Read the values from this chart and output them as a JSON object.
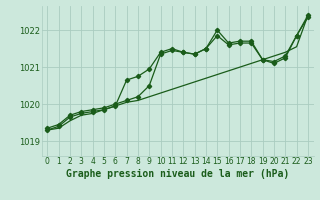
{
  "title": "Graphe pression niveau de la mer (hPa)",
  "background_color": "#cce8dc",
  "grid_color": "#aaccc0",
  "line_color": "#1a5c1a",
  "xlim": [
    -0.5,
    23.5
  ],
  "ylim": [
    1018.6,
    1022.65
  ],
  "yticks": [
    1019,
    1020,
    1021,
    1022
  ],
  "xticks": [
    0,
    1,
    2,
    3,
    4,
    5,
    6,
    7,
    8,
    9,
    10,
    11,
    12,
    13,
    14,
    15,
    16,
    17,
    18,
    19,
    20,
    21,
    22,
    23
  ],
  "series1_x": [
    0,
    1,
    2,
    3,
    4,
    5,
    6,
    7,
    8,
    9,
    10,
    11,
    12,
    13,
    14,
    15,
    16,
    17,
    18,
    19,
    20,
    21,
    22,
    23
  ],
  "series1": [
    1019.35,
    1019.45,
    1019.7,
    1019.8,
    1019.85,
    1019.9,
    1020.0,
    1020.1,
    1020.2,
    1020.5,
    1021.35,
    1021.45,
    1021.4,
    1021.35,
    1021.5,
    1022.0,
    1021.65,
    1021.7,
    1021.7,
    1021.2,
    1021.15,
    1021.3,
    1021.85,
    1022.4
  ],
  "series2_x": [
    0,
    1,
    2,
    3,
    4,
    5,
    6,
    7,
    8,
    9,
    10,
    11,
    12,
    13,
    14,
    15,
    16,
    17,
    18,
    19,
    20,
    21,
    22,
    23
  ],
  "series2": [
    1019.3,
    1019.35,
    1019.55,
    1019.7,
    1019.75,
    1019.85,
    1019.95,
    1020.05,
    1020.1,
    1020.2,
    1020.3,
    1020.4,
    1020.5,
    1020.6,
    1020.7,
    1020.8,
    1020.9,
    1021.0,
    1021.1,
    1021.2,
    1021.3,
    1021.4,
    1021.55,
    1022.4
  ],
  "series3_x": [
    0,
    1,
    2,
    3,
    4,
    5,
    6,
    7,
    8,
    9,
    10,
    11,
    12,
    13,
    14,
    15,
    16,
    17,
    18,
    19,
    20,
    21,
    22,
    23
  ],
  "series3": [
    1019.3,
    1019.4,
    1019.65,
    1019.75,
    1019.8,
    1019.85,
    1019.95,
    1020.65,
    1020.75,
    1020.95,
    1021.4,
    1021.5,
    1021.4,
    1021.35,
    1021.5,
    1021.85,
    1021.6,
    1021.65,
    1021.65,
    1021.2,
    1021.1,
    1021.25,
    1021.85,
    1022.35
  ],
  "title_fontsize": 7,
  "tick_fontsize": 5.5,
  "ytick_fontsize": 6
}
